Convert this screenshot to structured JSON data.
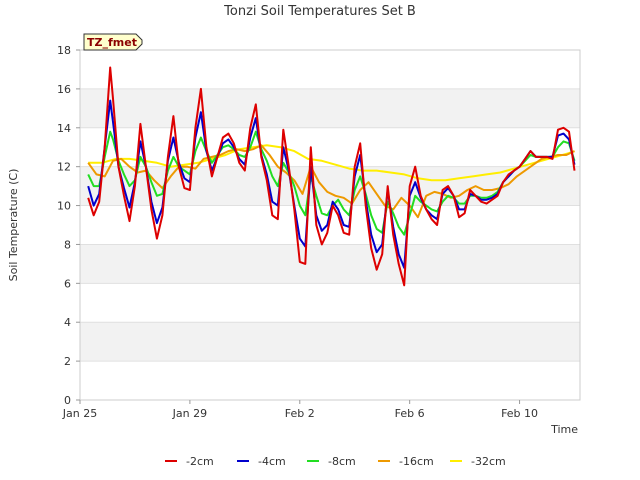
{
  "chart_data": {
    "type": "line",
    "title": "Tonzi Soil Temperatures Set B",
    "xlabel": "Time",
    "ylabel": "Soil Temperature (C)",
    "ylim": [
      0,
      18
    ],
    "xlim": [
      0,
      18.2
    ],
    "yticks": [
      0,
      2,
      4,
      6,
      8,
      10,
      12,
      14,
      16,
      18
    ],
    "xticks": [
      {
        "x": 0,
        "label": "Jan 25"
      },
      {
        "x": 4,
        "label": "Jan 29"
      },
      {
        "x": 8,
        "label": "Feb 2"
      },
      {
        "x": 12,
        "label": "Feb 6"
      },
      {
        "x": 16,
        "label": "Feb 10"
      }
    ],
    "x_unit": "days since Jan 25",
    "grid": true,
    "legend_placement": "bottom",
    "badge": "TZ_fmet",
    "series": [
      {
        "name": "-2cm",
        "color": "#dd0000",
        "x": [
          0.3,
          0.5,
          0.7,
          0.9,
          1.1,
          1.2,
          1.4,
          1.6,
          1.8,
          2.0,
          2.2,
          2.4,
          2.6,
          2.8,
          3.0,
          3.2,
          3.4,
          3.6,
          3.8,
          4.0,
          4.2,
          4.4,
          4.6,
          4.8,
          5.0,
          5.2,
          5.4,
          5.6,
          5.8,
          6.0,
          6.2,
          6.4,
          6.6,
          6.8,
          7.0,
          7.2,
          7.4,
          7.6,
          7.8,
          8.0,
          8.2,
          8.4,
          8.6,
          8.8,
          9.0,
          9.2,
          9.4,
          9.6,
          9.8,
          10.0,
          10.2,
          10.4,
          10.6,
          10.8,
          11.0,
          11.2,
          11.4,
          11.6,
          11.8,
          12.0,
          12.2,
          12.4,
          12.6,
          12.8,
          13.0,
          13.2,
          13.4,
          13.6,
          13.8,
          14.0,
          14.2,
          14.4,
          14.6,
          14.8,
          15.0,
          15.2,
          15.4,
          15.6,
          15.8,
          16.0,
          16.2,
          16.4,
          16.6,
          16.8,
          17.0,
          17.2,
          17.4,
          17.6,
          17.8,
          18.0
        ],
        "values": [
          10.4,
          9.5,
          10.2,
          13.0,
          17.1,
          15.5,
          12.0,
          10.5,
          9.2,
          11.0,
          14.2,
          12.0,
          9.8,
          8.3,
          9.5,
          12.5,
          14.6,
          12.0,
          10.9,
          10.8,
          14.0,
          16.0,
          13.0,
          11.5,
          12.5,
          13.5,
          13.7,
          13.2,
          12.2,
          11.8,
          14.0,
          15.2,
          12.5,
          11.3,
          9.5,
          9.3,
          13.9,
          12.0,
          9.8,
          7.1,
          7.0,
          13.0,
          9.0,
          8.0,
          8.6,
          10.0,
          9.5,
          8.6,
          8.5,
          12.0,
          13.2,
          10.0,
          7.8,
          6.7,
          7.5,
          11.0,
          8.5,
          7.0,
          5.9,
          11.0,
          12.0,
          10.5,
          9.8,
          9.3,
          9.0,
          10.8,
          11.0,
          10.5,
          9.4,
          9.6,
          10.8,
          10.5,
          10.2,
          10.1,
          10.3,
          10.5,
          11.2,
          11.6,
          11.8,
          12.0,
          12.4,
          12.8,
          12.5,
          12.5,
          12.5,
          12.4,
          13.9,
          14.0,
          13.8,
          11.8
        ]
      },
      {
        "name": "-4cm",
        "color": "#0000cc",
        "x": [
          0.3,
          0.5,
          0.7,
          0.9,
          1.1,
          1.2,
          1.4,
          1.6,
          1.8,
          2.0,
          2.2,
          2.4,
          2.6,
          2.8,
          3.0,
          3.2,
          3.4,
          3.6,
          3.8,
          4.0,
          4.2,
          4.4,
          4.6,
          4.8,
          5.0,
          5.2,
          5.4,
          5.6,
          5.8,
          6.0,
          6.2,
          6.4,
          6.6,
          6.8,
          7.0,
          7.2,
          7.4,
          7.6,
          7.8,
          8.0,
          8.2,
          8.4,
          8.6,
          8.8,
          9.0,
          9.2,
          9.4,
          9.6,
          9.8,
          10.0,
          10.2,
          10.4,
          10.6,
          10.8,
          11.0,
          11.2,
          11.4,
          11.6,
          11.8,
          12.0,
          12.2,
          12.4,
          12.6,
          12.8,
          13.0,
          13.2,
          13.4,
          13.6,
          13.8,
          14.0,
          14.2,
          14.4,
          14.6,
          14.8,
          15.0,
          15.2,
          15.4,
          15.6,
          15.8,
          16.0,
          16.2,
          16.4,
          16.6,
          16.8,
          17.0,
          17.2,
          17.4,
          17.6,
          17.8,
          18.0
        ],
        "values": [
          11.0,
          10.0,
          10.6,
          13.0,
          15.4,
          14.3,
          12.0,
          10.9,
          9.9,
          11.2,
          13.3,
          12.0,
          10.2,
          9.1,
          9.9,
          12.3,
          13.5,
          12.2,
          11.4,
          11.2,
          13.5,
          14.8,
          12.8,
          11.8,
          12.5,
          13.2,
          13.4,
          13.0,
          12.4,
          12.1,
          13.5,
          14.5,
          12.6,
          11.6,
          10.2,
          10.0,
          13.0,
          11.8,
          10.0,
          8.3,
          7.9,
          12.0,
          9.5,
          8.7,
          9.0,
          10.2,
          9.8,
          9.0,
          8.9,
          11.5,
          12.6,
          10.3,
          8.5,
          7.6,
          8.0,
          10.8,
          8.9,
          7.5,
          6.8,
          10.5,
          11.2,
          10.4,
          9.8,
          9.5,
          9.3,
          10.6,
          10.9,
          10.5,
          9.8,
          9.8,
          10.6,
          10.5,
          10.3,
          10.3,
          10.4,
          10.6,
          11.2,
          11.5,
          11.8,
          12.0,
          12.4,
          12.8,
          12.5,
          12.5,
          12.5,
          12.5,
          13.6,
          13.7,
          13.4,
          12.1
        ]
      },
      {
        "name": "-8cm",
        "color": "#22dd22",
        "x": [
          0.3,
          0.5,
          0.7,
          0.9,
          1.1,
          1.2,
          1.4,
          1.6,
          1.8,
          2.0,
          2.2,
          2.4,
          2.6,
          2.8,
          3.0,
          3.2,
          3.4,
          3.6,
          3.8,
          4.0,
          4.2,
          4.4,
          4.6,
          4.8,
          5.0,
          5.2,
          5.4,
          5.6,
          5.8,
          6.0,
          6.2,
          6.4,
          6.6,
          6.8,
          7.0,
          7.2,
          7.4,
          7.6,
          7.8,
          8.0,
          8.2,
          8.4,
          8.6,
          8.8,
          9.0,
          9.2,
          9.4,
          9.6,
          9.8,
          10.0,
          10.2,
          10.4,
          10.6,
          10.8,
          11.0,
          11.2,
          11.4,
          11.6,
          11.8,
          12.0,
          12.2,
          12.4,
          12.6,
          12.8,
          13.0,
          13.2,
          13.4,
          13.6,
          13.8,
          14.0,
          14.2,
          14.4,
          14.6,
          14.8,
          15.0,
          15.2,
          15.4,
          15.6,
          15.8,
          16.0,
          16.2,
          16.4,
          16.6,
          16.8,
          17.0,
          17.2,
          17.4,
          17.6,
          17.8,
          18.0
        ],
        "values": [
          11.6,
          11.0,
          11.0,
          12.5,
          13.8,
          13.4,
          12.3,
          11.6,
          11.0,
          11.3,
          12.5,
          12.0,
          11.2,
          10.5,
          10.6,
          11.8,
          12.5,
          12.0,
          11.8,
          11.6,
          12.8,
          13.5,
          12.8,
          12.2,
          12.6,
          13.0,
          13.1,
          12.9,
          12.6,
          12.5,
          13.0,
          13.8,
          12.9,
          12.3,
          11.5,
          11.0,
          12.2,
          11.7,
          11.0,
          10.0,
          9.5,
          11.5,
          10.5,
          9.6,
          9.5,
          10.0,
          10.3,
          9.8,
          9.5,
          10.8,
          11.5,
          10.6,
          9.5,
          8.8,
          8.6,
          10.2,
          9.6,
          8.9,
          8.5,
          9.5,
          10.5,
          10.2,
          10.0,
          9.8,
          9.7,
          10.2,
          10.5,
          10.4,
          10.1,
          10.1,
          10.5,
          10.5,
          10.4,
          10.4,
          10.5,
          10.7,
          11.2,
          11.5,
          11.8,
          12.0,
          12.3,
          12.6,
          12.5,
          12.5,
          12.5,
          12.5,
          13.0,
          13.3,
          13.2,
          12.3
        ]
      },
      {
        "name": "-16cm",
        "color": "#ee9900",
        "x": [
          0.3,
          0.6,
          0.9,
          1.2,
          1.5,
          1.8,
          2.1,
          2.4,
          2.7,
          3.0,
          3.3,
          3.6,
          3.9,
          4.2,
          4.5,
          4.8,
          5.1,
          5.4,
          5.7,
          6.0,
          6.3,
          6.6,
          6.9,
          7.2,
          7.5,
          7.8,
          8.1,
          8.4,
          8.7,
          9.0,
          9.3,
          9.6,
          9.9,
          10.2,
          10.5,
          10.8,
          11.1,
          11.4,
          11.7,
          12.0,
          12.3,
          12.6,
          12.9,
          13.2,
          13.5,
          13.8,
          14.1,
          14.4,
          14.7,
          15.0,
          15.3,
          15.6,
          15.9,
          16.2,
          16.5,
          16.8,
          17.1,
          17.4,
          17.7,
          18.0
        ],
        "values": [
          12.2,
          11.6,
          11.5,
          12.3,
          12.4,
          12.0,
          11.7,
          11.8,
          11.3,
          10.9,
          11.5,
          12.0,
          12.0,
          11.9,
          12.4,
          12.5,
          12.6,
          12.8,
          12.9,
          12.8,
          12.9,
          13.1,
          12.6,
          12.0,
          11.7,
          11.3,
          10.6,
          12.0,
          11.2,
          10.7,
          10.5,
          10.4,
          10.1,
          10.8,
          11.2,
          10.6,
          10.0,
          9.8,
          10.4,
          10.0,
          9.4,
          10.5,
          10.7,
          10.6,
          10.4,
          10.5,
          10.8,
          11.0,
          10.8,
          10.8,
          10.9,
          11.1,
          11.5,
          11.8,
          12.1,
          12.4,
          12.5,
          12.6,
          12.6,
          12.8
        ]
      },
      {
        "name": "-32cm",
        "color": "#ffee00",
        "x": [
          0.3,
          0.8,
          1.3,
          1.8,
          2.3,
          2.8,
          3.3,
          3.8,
          4.3,
          4.8,
          5.3,
          5.8,
          6.3,
          6.8,
          7.3,
          7.8,
          8.3,
          8.8,
          9.3,
          9.8,
          10.3,
          10.8,
          11.3,
          11.8,
          12.3,
          12.8,
          13.3,
          13.8,
          14.3,
          14.8,
          15.3,
          15.8,
          16.3,
          16.8,
          17.3,
          17.8,
          18.0
        ],
        "values": [
          12.2,
          12.2,
          12.4,
          12.4,
          12.3,
          12.2,
          12.0,
          12.1,
          12.2,
          12.4,
          12.6,
          12.9,
          13.0,
          13.1,
          13.0,
          12.8,
          12.4,
          12.3,
          12.1,
          11.9,
          11.8,
          11.8,
          11.7,
          11.6,
          11.4,
          11.3,
          11.3,
          11.4,
          11.5,
          11.6,
          11.7,
          11.9,
          12.1,
          12.3,
          12.5,
          12.7,
          12.8
        ]
      }
    ]
  }
}
